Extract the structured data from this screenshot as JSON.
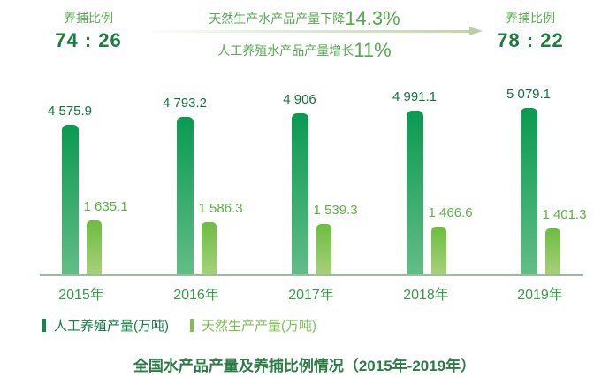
{
  "header": {
    "left": {
      "label": "养捕比例",
      "ratio": "74 : 26"
    },
    "right": {
      "label": "养捕比例",
      "ratio": "78 : 22"
    },
    "center": {
      "line1_text": "天然生产水产品产量下降",
      "line1_value": "14.3%",
      "line2_text": "人工养殖水产品产量增长",
      "line2_value": "11%"
    },
    "arrow_color": "#b5d2a5"
  },
  "chart_data": {
    "type": "bar",
    "categories": [
      "2015年",
      "2016年",
      "2017年",
      "2018年",
      "2019年"
    ],
    "series": [
      {
        "name": "人工养殖产量(万吨)",
        "values": [
          4575.9,
          4793.2,
          4906,
          4991.1,
          5079.1
        ],
        "labels": [
          "4 575.9",
          "4 793.2",
          "4 906",
          "4 991.1",
          "5 079.1"
        ],
        "color_top": "#0a9a52",
        "color_bottom": "#62bd86"
      },
      {
        "name": "天然生产产量(万吨)",
        "values": [
          1635.1,
          1586.3,
          1539.3,
          1466.6,
          1401.3
        ],
        "labels": [
          "1 635.1",
          "1 586.3",
          "1 539.3",
          "1 466.6",
          "1 401.3"
        ],
        "color_top": "#6cbd3f",
        "color_bottom": "#a6d17a"
      }
    ],
    "title": "全国水产品产量及养捕比例情况（2015年-2019年）",
    "xlabel": "",
    "ylabel": "",
    "unit": "万吨",
    "ylim": [
      0,
      5800
    ],
    "grid": false,
    "legend_position": "bottom"
  },
  "legend": {
    "items": [
      {
        "label": "人工养殖产量(万吨)",
        "color": "#118749"
      },
      {
        "label": "天然生产产量(万吨)",
        "color": "#7dc04f"
      }
    ]
  }
}
